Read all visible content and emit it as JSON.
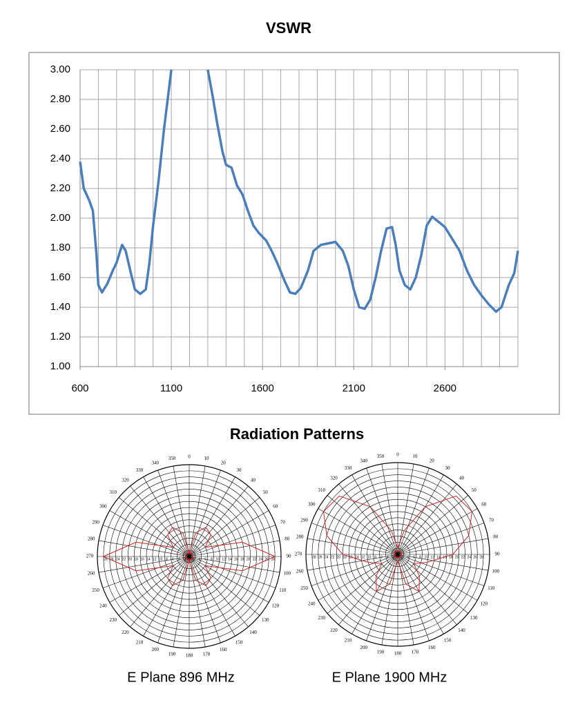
{
  "section_title": "Radiation Patterns",
  "chart_data": [
    {
      "type": "line",
      "title": "VSWR",
      "xlim": [
        600,
        3000
      ],
      "xticks": [
        600,
        1100,
        1600,
        2100,
        2600
      ],
      "xgrid": [
        600,
        700,
        800,
        900,
        1000,
        1100,
        1200,
        1300,
        1400,
        1500,
        1600,
        1700,
        1800,
        1900,
        2000,
        2100,
        2200,
        2300,
        2400,
        2500,
        2600,
        2700,
        2800,
        2900,
        3000
      ],
      "ylim": [
        1,
        3
      ],
      "yticks": [
        {
          "value": 1,
          "label": "1.00"
        },
        {
          "value": 1.2,
          "label": "1.20"
        },
        {
          "value": 1.4,
          "label": "1.40"
        },
        {
          "value": 1.6,
          "label": "1.60"
        },
        {
          "value": 1.8,
          "label": "1.80"
        },
        {
          "value": 2,
          "label": "2.00"
        },
        {
          "value": 2.2,
          "label": "2.20"
        },
        {
          "value": 2.4,
          "label": "2.40"
        },
        {
          "value": 2.6,
          "label": "2.60"
        },
        {
          "value": 2.8,
          "label": "2.80"
        },
        {
          "value": 3,
          "label": "3.00"
        }
      ],
      "grid": true,
      "color": "#4a7ebb",
      "x": [
        600,
        620,
        650,
        670,
        690,
        700,
        720,
        750,
        780,
        800,
        830,
        850,
        880,
        900,
        930,
        960,
        980,
        1000,
        1030,
        1060,
        1080,
        1100,
        1150,
        1200,
        1250,
        1300,
        1330,
        1350,
        1380,
        1400,
        1430,
        1460,
        1490,
        1520,
        1550,
        1580,
        1620,
        1650,
        1680,
        1720,
        1750,
        1780,
        1810,
        1850,
        1880,
        1920,
        1960,
        2000,
        2040,
        2070,
        2100,
        2130,
        2160,
        2190,
        2220,
        2250,
        2280,
        2310,
        2330,
        2350,
        2380,
        2410,
        2440,
        2470,
        2500,
        2530,
        2560,
        2600,
        2640,
        2680,
        2720,
        2760,
        2800,
        2840,
        2880,
        2910,
        2950,
        2980,
        3000
      ],
      "values": [
        2.38,
        2.2,
        2.12,
        2.05,
        1.75,
        1.55,
        1.5,
        1.56,
        1.65,
        1.7,
        1.82,
        1.78,
        1.62,
        1.52,
        1.49,
        1.52,
        1.7,
        1.95,
        2.25,
        2.6,
        2.8,
        3.0,
        null,
        null,
        null,
        3.0,
        2.8,
        2.65,
        2.45,
        2.36,
        2.34,
        2.22,
        2.16,
        2.05,
        1.95,
        1.9,
        1.85,
        1.78,
        1.7,
        1.58,
        1.5,
        1.49,
        1.53,
        1.65,
        1.78,
        1.82,
        1.83,
        1.84,
        1.78,
        1.68,
        1.52,
        1.4,
        1.39,
        1.45,
        1.6,
        1.78,
        1.93,
        1.94,
        1.82,
        1.65,
        1.55,
        1.52,
        1.6,
        1.75,
        1.95,
        2.01,
        1.98,
        1.94,
        1.86,
        1.78,
        1.65,
        1.55,
        1.48,
        1.42,
        1.37,
        1.4,
        1.55,
        1.63,
        1.78
      ]
    },
    {
      "type": "polar",
      "title": "E Plane 896 MHz",
      "color": "#d02020",
      "rlim": [
        0,
        30
      ],
      "rticks": [
        2,
        4,
        6,
        8,
        10,
        12,
        14,
        16,
        18,
        20,
        22,
        24,
        26,
        28
      ],
      "thetaticks": [
        0,
        10,
        20,
        30,
        40,
        50,
        60,
        70,
        80,
        90,
        100,
        110,
        120,
        130,
        140,
        150,
        160,
        170,
        180,
        190,
        200,
        210,
        220,
        230,
        240,
        250,
        260,
        270,
        280,
        290,
        300,
        310,
        320,
        330,
        340,
        350
      ],
      "theta": [
        0,
        15,
        30,
        45,
        60,
        75,
        90,
        105,
        120,
        135,
        150,
        165,
        180,
        195,
        210,
        225,
        240,
        255,
        270,
        285,
        300,
        315,
        330,
        345,
        360
      ],
      "r": [
        1,
        8,
        11,
        10,
        6,
        18,
        28,
        18,
        6,
        10,
        11,
        8,
        1,
        8,
        11,
        10,
        6,
        18,
        28,
        18,
        6,
        10,
        11,
        8,
        1
      ]
    },
    {
      "type": "polar",
      "title": "E Plane 1900 MHz",
      "color": "#d02020",
      "rlim": [
        0,
        30
      ],
      "rticks": [
        2,
        4,
        6,
        8,
        10,
        12,
        14,
        16,
        18,
        20,
        22,
        24,
        26,
        28
      ],
      "thetaticks": [
        0,
        10,
        20,
        30,
        40,
        50,
        60,
        70,
        80,
        90,
        100,
        110,
        120,
        130,
        140,
        150,
        160,
        170,
        180,
        190,
        200,
        210,
        220,
        230,
        240,
        250,
        260,
        270,
        280,
        290,
        300,
        310,
        320,
        330,
        340,
        350
      ],
      "theta": [
        0,
        15,
        30,
        45,
        60,
        75,
        90,
        105,
        120,
        135,
        150,
        165,
        180,
        195,
        210,
        225,
        240,
        255,
        270,
        285,
        300,
        315,
        330,
        345,
        360
      ],
      "r": [
        2,
        8,
        18,
        27,
        28,
        24,
        18,
        10,
        6,
        10,
        14,
        10,
        2,
        10,
        14,
        10,
        6,
        10,
        18,
        24,
        28,
        27,
        18,
        8,
        2
      ]
    }
  ]
}
